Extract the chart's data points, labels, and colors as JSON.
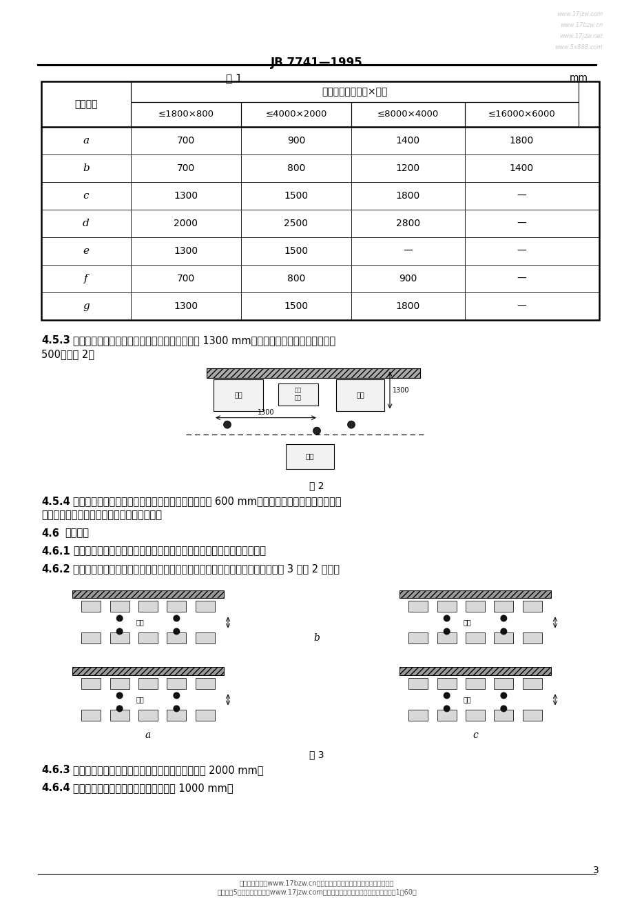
{
  "title": "JB 7741—1995",
  "table_title": "表 1",
  "table_unit": "mm",
  "watermark_lines": [
    "www.17jzw.com",
    "www.17bzw.cn",
    "www.17jzw.net",
    "www.5x888.com"
  ],
  "table_header_col": "最小距离",
  "table_header_span": "机床轮廓尺寸（长×宽）",
  "table_col_headers": [
    "≤1800×800",
    "≤4000×2000",
    "≤8000×4000",
    "≤16000×6000"
  ],
  "table_rows": [
    [
      "a",
      "700",
      "900",
      "1400",
      "1800"
    ],
    [
      "b",
      "700",
      "800",
      "1200",
      "1400"
    ],
    [
      "c",
      "1300",
      "1500",
      "1800",
      "—"
    ],
    [
      "d",
      "2000",
      "2500",
      "2800",
      "—"
    ],
    [
      "e",
      "1300",
      "1500",
      "—",
      "—"
    ],
    [
      "f",
      "700",
      "800",
      "900",
      "—"
    ],
    [
      "g",
      "1300",
      "1500",
      "1800",
      "—"
    ]
  ],
  "fig2_label": "图 2",
  "fig3_label": "图 3",
  "page_number": "3",
  "background_color": "#ffffff",
  "footer_text": "标准资料收藏家www.17bzw.cn易启标准网免费提供十万标准书籍资料下载",
  "footer_text2": "会打字、5分钟快速自助建站www.17jzw.com易启建站网免费提供建站平台，商业网站1年60元"
}
